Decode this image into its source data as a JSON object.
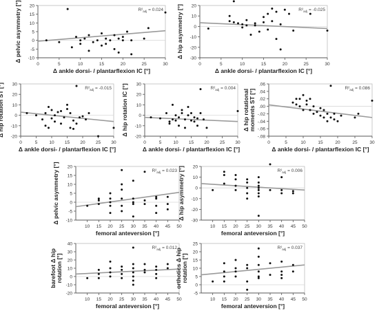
{
  "chart_data": [
    {
      "type": "scatter",
      "id": "p1",
      "ylabel": "Δ pelvic asymmetry [°]",
      "xlabel": "Δ ankle dorsi- / plantarflexion IC [°]",
      "r2_main": "R²",
      "r2_sub": "adj",
      "r2_value": " = 0.024",
      "xlim": [
        0,
        30
      ],
      "xticks": [
        0,
        5,
        10,
        15,
        20,
        25,
        30
      ],
      "ylim": [
        -10,
        20
      ],
      "yticks": [
        -10,
        -5,
        0,
        5,
        10,
        15,
        20
      ],
      "regression": {
        "x": [
          0,
          30
        ],
        "y": [
          -0.5,
          5.5
        ]
      },
      "points": [
        [
          2,
          0
        ],
        [
          5,
          -1
        ],
        [
          7,
          18
        ],
        [
          8,
          -4
        ],
        [
          9,
          2
        ],
        [
          10,
          0
        ],
        [
          10,
          -2
        ],
        [
          11,
          1
        ],
        [
          12,
          3
        ],
        [
          12,
          -6
        ],
        [
          13,
          -1
        ],
        [
          14,
          0
        ],
        [
          15,
          4
        ],
        [
          15,
          -3
        ],
        [
          16,
          1
        ],
        [
          16,
          -2
        ],
        [
          17,
          0
        ],
        [
          18,
          3
        ],
        [
          18,
          -5
        ],
        [
          19,
          1
        ],
        [
          19,
          -7
        ],
        [
          20,
          2
        ],
        [
          20,
          0
        ],
        [
          21,
          5
        ],
        [
          22,
          0
        ],
        [
          22,
          -8
        ],
        [
          25,
          1
        ],
        [
          26,
          7
        ],
        [
          30,
          16
        ]
      ]
    },
    {
      "type": "scatter",
      "id": "p2",
      "ylabel": "Δ hip asymmetry [°]",
      "xlabel": "Δ ankle dorsi- / plantarflexion IC [°]",
      "r2_main": "R²",
      "r2_sub": "adj",
      "r2_value": " = -0.025",
      "xlim": [
        0,
        30
      ],
      "xticks": [
        0,
        5,
        10,
        15,
        20,
        25,
        30
      ],
      "ylim": [
        -30,
        20
      ],
      "yticks": [
        -30,
        -20,
        -10,
        0,
        10,
        20
      ],
      "regression": {
        "x": [
          0,
          30
        ],
        "y": [
          3.5,
          -2
        ]
      },
      "points": [
        [
          2,
          -2
        ],
        [
          7,
          5
        ],
        [
          7,
          10
        ],
        [
          8,
          24
        ],
        [
          8,
          4
        ],
        [
          9,
          3
        ],
        [
          10,
          -1
        ],
        [
          10,
          2
        ],
        [
          11,
          6
        ],
        [
          11,
          1
        ],
        [
          12,
          -8
        ],
        [
          13,
          1
        ],
        [
          13,
          3
        ],
        [
          14,
          -5
        ],
        [
          15,
          9
        ],
        [
          15,
          4
        ],
        [
          16,
          12
        ],
        [
          16,
          -3
        ],
        [
          17,
          17
        ],
        [
          17,
          5
        ],
        [
          18,
          14
        ],
        [
          18,
          -12
        ],
        [
          19,
          2
        ],
        [
          19,
          -22
        ],
        [
          20,
          16
        ],
        [
          21,
          12
        ],
        [
          22,
          -4
        ],
        [
          26,
          12
        ],
        [
          30,
          -4
        ]
      ]
    },
    {
      "type": "scatter",
      "id": "p3",
      "ylabel": "Δ hip rotation ST [°]",
      "xlabel": "Δ ankle dorsi- / plantarflexion IC [°]",
      "r2_main": "R²",
      "r2_sub": "adj",
      "r2_value": " = -0.015",
      "xlim": [
        0,
        30
      ],
      "xticks": [
        0,
        5,
        10,
        15,
        20,
        25,
        30
      ],
      "ylim": [
        -20,
        30
      ],
      "yticks": [
        -20,
        -10,
        0,
        10,
        20,
        30
      ],
      "regression": {
        "x": [
          0,
          30
        ],
        "y": [
          3,
          -6
        ]
      },
      "points": [
        [
          2,
          2
        ],
        [
          5,
          0
        ],
        [
          7,
          -4
        ],
        [
          8,
          -10
        ],
        [
          8,
          2
        ],
        [
          9,
          8
        ],
        [
          9,
          -12
        ],
        [
          10,
          -3
        ],
        [
          10,
          5
        ],
        [
          11,
          0
        ],
        [
          11,
          -6
        ],
        [
          12,
          3
        ],
        [
          13,
          -8
        ],
        [
          13,
          4
        ],
        [
          14,
          -2
        ],
        [
          15,
          10
        ],
        [
          15,
          6
        ],
        [
          16,
          2
        ],
        [
          16,
          -12
        ],
        [
          17,
          -5
        ],
        [
          17,
          -13
        ],
        [
          18,
          28
        ],
        [
          18,
          -8
        ],
        [
          19,
          -2
        ],
        [
          20,
          -1
        ],
        [
          21,
          -4
        ],
        [
          22,
          2
        ],
        [
          25,
          -20
        ],
        [
          30,
          -12
        ]
      ]
    },
    {
      "type": "scatter",
      "id": "p4",
      "ylabel": "Δ hip rotation IC [°]",
      "xlabel": "Δ ankle dorsi- / plantarflexion IC [°]",
      "r2_main": "R²",
      "r2_sub": "adj",
      "r2_value": " = 0.004",
      "xlim": [
        0,
        30
      ],
      "xticks": [
        0,
        5,
        10,
        15,
        20,
        25,
        30
      ],
      "ylim": [
        -20,
        30
      ],
      "yticks": [
        -20,
        -10,
        0,
        10,
        20,
        30
      ],
      "regression": {
        "x": [
          0,
          30
        ],
        "y": [
          -2,
          -6
        ]
      },
      "points": [
        [
          2,
          -2
        ],
        [
          5,
          -3
        ],
        [
          7,
          2
        ],
        [
          8,
          -6
        ],
        [
          8,
          -8
        ],
        [
          9,
          10
        ],
        [
          9,
          -4
        ],
        [
          10,
          -5
        ],
        [
          10,
          0
        ],
        [
          11,
          -2
        ],
        [
          11,
          -10
        ],
        [
          12,
          2
        ],
        [
          12,
          5
        ],
        [
          13,
          -4
        ],
        [
          13,
          -12
        ],
        [
          14,
          8
        ],
        [
          14,
          0
        ],
        [
          15,
          -5
        ],
        [
          15,
          2
        ],
        [
          16,
          -2
        ],
        [
          16,
          -6
        ],
        [
          17,
          -3
        ],
        [
          17,
          -10
        ],
        [
          18,
          25
        ],
        [
          18,
          2
        ],
        [
          19,
          -4
        ],
        [
          20,
          -12
        ],
        [
          30,
          4
        ]
      ]
    },
    {
      "type": "scatter",
      "id": "p5",
      "ylabel": "Δ hip rotational moments ST [°]",
      "xlabel": "Δ ankle dorsi- / plantarflexion IC [°]",
      "r2_main": "R²",
      "r2_sub": "adj",
      "r2_value": " = 0.086",
      "xlim": [
        0,
        30
      ],
      "xticks": [
        0,
        5,
        10,
        15,
        20,
        25,
        30
      ],
      "ylim": [
        -0.08,
        0.06
      ],
      "yticks": [
        -0.08,
        -0.06,
        -0.04,
        -0.02,
        0.0,
        0.02,
        0.04,
        0.06
      ],
      "yticklabels": [
        "-.08",
        "-.06",
        "-.04",
        "-.02",
        ".00",
        ".02",
        ".04",
        ".06"
      ],
      "regression": {
        "x": [
          0,
          30
        ],
        "y": [
          0.004,
          -0.03
        ]
      },
      "points": [
        [
          7,
          0.01
        ],
        [
          8,
          0.02
        ],
        [
          8,
          0.005
        ],
        [
          9,
          0.02
        ],
        [
          9,
          0.0
        ],
        [
          10,
          0.03
        ],
        [
          10,
          -0.01
        ],
        [
          11,
          0.015
        ],
        [
          11,
          0.005
        ],
        [
          12,
          0.02
        ],
        [
          12,
          -0.01
        ],
        [
          13,
          0.0
        ],
        [
          13,
          -0.02
        ],
        [
          14,
          -0.015
        ],
        [
          15,
          -0.025
        ],
        [
          15,
          -0.005
        ],
        [
          16,
          -0.03
        ],
        [
          16,
          -0.01
        ],
        [
          17,
          -0.02
        ],
        [
          17,
          -0.04
        ],
        [
          18,
          0.055
        ],
        [
          18,
          -0.03
        ],
        [
          19,
          -0.035
        ],
        [
          19,
          -0.02
        ],
        [
          20,
          -0.04
        ],
        [
          21,
          -0.025
        ],
        [
          25,
          -0.03
        ],
        [
          26,
          -0.02
        ],
        [
          30,
          0.015
        ]
      ]
    },
    {
      "type": "scatter",
      "id": "p6",
      "ylabel": "Δ pelvic asymmetry [°]",
      "xlabel": "femoral anteversion [°]",
      "r2_main": "R²",
      "r2_sub": "adj",
      "r2_value": " = 0.023",
      "xlim": [
        5,
        50
      ],
      "xticks": [
        10,
        15,
        20,
        25,
        30,
        35,
        40,
        45,
        50
      ],
      "ylim": [
        -10,
        20
      ],
      "yticks": [
        -10,
        -5,
        0,
        5,
        10,
        15,
        20
      ],
      "regression": {
        "x": [
          5,
          50
        ],
        "y": [
          -2.5,
          5.5
        ]
      },
      "points": [
        [
          10,
          -2
        ],
        [
          15,
          1
        ],
        [
          15,
          -1
        ],
        [
          15,
          2
        ],
        [
          20,
          0
        ],
        [
          20,
          2
        ],
        [
          20,
          5
        ],
        [
          20,
          -2
        ],
        [
          20,
          -6
        ],
        [
          25,
          18
        ],
        [
          25,
          10
        ],
        [
          25,
          7
        ],
        [
          25,
          2
        ],
        [
          25,
          -2
        ],
        [
          25,
          -5
        ],
        [
          30,
          12
        ],
        [
          30,
          2
        ],
        [
          30,
          0
        ],
        [
          30,
          -1
        ],
        [
          30,
          -8
        ],
        [
          35,
          17
        ],
        [
          35,
          1
        ],
        [
          35,
          -1
        ],
        [
          40,
          3
        ],
        [
          40,
          2
        ],
        [
          40,
          -2
        ],
        [
          40,
          -6
        ],
        [
          45,
          3
        ],
        [
          45,
          -1
        ],
        [
          45,
          -4
        ]
      ]
    },
    {
      "type": "scatter",
      "id": "p7",
      "ylabel": "Δ hip asymmetry [°]",
      "xlabel": "femoral anteversion [°]",
      "r2_main": "R²",
      "r2_sub": "adj",
      "r2_value": " = 0.006",
      "xlim": [
        5,
        50
      ],
      "xticks": [
        10,
        15,
        20,
        25,
        30,
        35,
        40,
        45,
        50
      ],
      "ylim": [
        -30,
        20
      ],
      "yticks": [
        -30,
        -20,
        -10,
        0,
        10,
        20
      ],
      "regression": {
        "x": [
          5,
          50
        ],
        "y": [
          4,
          -2
        ]
      },
      "points": [
        [
          10,
          -2
        ],
        [
          15,
          15
        ],
        [
          15,
          12
        ],
        [
          15,
          4
        ],
        [
          20,
          12
        ],
        [
          20,
          8
        ],
        [
          20,
          2
        ],
        [
          20,
          -2
        ],
        [
          25,
          8
        ],
        [
          25,
          5
        ],
        [
          25,
          0
        ],
        [
          25,
          -5
        ],
        [
          25,
          -10
        ],
        [
          30,
          10
        ],
        [
          30,
          5
        ],
        [
          30,
          2
        ],
        [
          30,
          0
        ],
        [
          30,
          -2
        ],
        [
          30,
          -5
        ],
        [
          30,
          -8
        ],
        [
          30,
          -26
        ],
        [
          35,
          22
        ],
        [
          35,
          -2
        ],
        [
          40,
          10
        ],
        [
          40,
          -2
        ],
        [
          40,
          -5
        ],
        [
          45,
          -3
        ],
        [
          45,
          -5
        ]
      ]
    },
    {
      "type": "scatter",
      "id": "p8",
      "ylabel": "barefoot Δ hip rotation [°]",
      "xlabel": "femoral anteversion [°]",
      "r2_main": "R²",
      "r2_sub": "adj",
      "r2_value": " = 0.012",
      "xlim": [
        5,
        50
      ],
      "xticks": [
        10,
        15,
        20,
        25,
        30,
        35,
        40,
        45,
        50
      ],
      "ylim": [
        -20,
        40
      ],
      "yticks": [
        -20,
        -10,
        0,
        10,
        20,
        30,
        40
      ],
      "regression": {
        "x": [
          5,
          50
        ],
        "y": [
          3,
          9
        ]
      },
      "points": [
        [
          10,
          -2
        ],
        [
          15,
          8
        ],
        [
          15,
          3
        ],
        [
          15,
          -2
        ],
        [
          20,
          18
        ],
        [
          20,
          10
        ],
        [
          20,
          5
        ],
        [
          20,
          0
        ],
        [
          25,
          12
        ],
        [
          25,
          8
        ],
        [
          25,
          3
        ],
        [
          25,
          -2
        ],
        [
          30,
          35
        ],
        [
          30,
          15
        ],
        [
          30,
          10
        ],
        [
          30,
          5
        ],
        [
          30,
          0
        ],
        [
          30,
          -5
        ],
        [
          30,
          -10
        ],
        [
          35,
          15
        ],
        [
          35,
          8
        ],
        [
          35,
          5
        ],
        [
          40,
          12
        ],
        [
          40,
          8
        ],
        [
          40,
          3
        ],
        [
          40,
          -2
        ],
        [
          45,
          15
        ],
        [
          45,
          10
        ]
      ]
    },
    {
      "type": "scatter",
      "id": "p9",
      "ylabel": "orthotics Δ hip rotation [°]",
      "xlabel": "femoral anteversion [°]",
      "r2_main": "R²",
      "r2_sub": "adj",
      "r2_value": " = 0.037",
      "xlim": [
        5,
        50
      ],
      "xticks": [
        10,
        15,
        20,
        25,
        30,
        35,
        40,
        45,
        50
      ],
      "ylim": [
        -5,
        25
      ],
      "yticks": [
        -5,
        0,
        5,
        10,
        15,
        20,
        25
      ],
      "regression": {
        "x": [
          5,
          50
        ],
        "y": [
          6,
          12
        ]
      },
      "points": [
        [
          10,
          2
        ],
        [
          15,
          13
        ],
        [
          15,
          8
        ],
        [
          15,
          5
        ],
        [
          15,
          2
        ],
        [
          20,
          15
        ],
        [
          20,
          10
        ],
        [
          20,
          8
        ],
        [
          20,
          5
        ],
        [
          25,
          12
        ],
        [
          25,
          10
        ],
        [
          25,
          2
        ],
        [
          25,
          -3
        ],
        [
          30,
          22
        ],
        [
          30,
          17
        ],
        [
          30,
          12
        ],
        [
          30,
          8
        ],
        [
          30,
          5
        ],
        [
          30,
          4
        ],
        [
          35,
          13
        ],
        [
          35,
          6
        ],
        [
          40,
          14
        ],
        [
          40,
          8
        ],
        [
          40,
          6
        ],
        [
          40,
          4
        ],
        [
          45,
          12
        ],
        [
          45,
          8
        ]
      ]
    }
  ]
}
